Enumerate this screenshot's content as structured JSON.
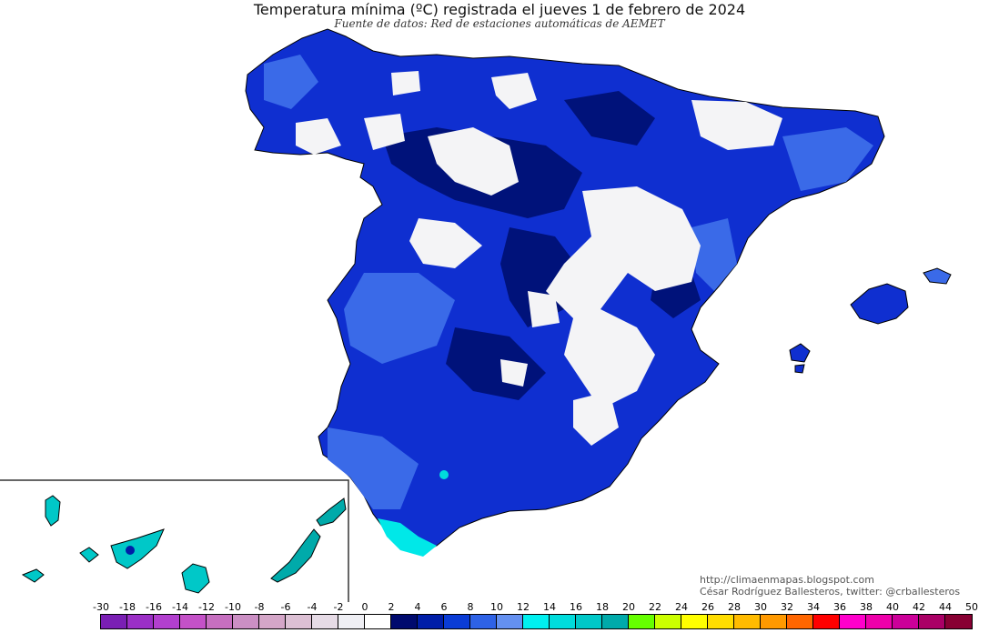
{
  "title": "Temperatura mínima (ºC) registrada el jueves 1 de febrero de 2024",
  "subtitle": "Fuente de datos: Red de estaciones automáticas de AEMET",
  "credits": {
    "url": "http://climaenmapas.blogspot.com",
    "author": "César Rodríguez Ballesteros, twitter: @crballesteros"
  },
  "legend": {
    "labels": [
      "-30",
      "-18",
      "-16",
      "-14",
      "-12",
      "-10",
      "-8",
      "-6",
      "-4",
      "-2",
      "0",
      "2",
      "4",
      "6",
      "8",
      "10",
      "12",
      "14",
      "16",
      "18",
      "20",
      "22",
      "24",
      "26",
      "28",
      "30",
      "32",
      "34",
      "36",
      "38",
      "40",
      "42",
      "44",
      "50"
    ],
    "colors": [
      "#7a1fb4",
      "#9b2fc6",
      "#b23fcf",
      "#c451c8",
      "#c66fc0",
      "#cb8fc4",
      "#d4a6c8",
      "#dcc0d4",
      "#e6dbe6",
      "#efeff4",
      "#ffffff",
      "#000a6e",
      "#001ea8",
      "#0a3cd6",
      "#2e62e6",
      "#6490f0",
      "#00f0f0",
      "#00dcdc",
      "#00c8c8",
      "#00aaaa",
      "#66ff00",
      "#ccff00",
      "#ffff00",
      "#ffdd00",
      "#ffbb00",
      "#ff9900",
      "#ff6600",
      "#ff0000",
      "#ff00cc",
      "#ee00aa",
      "#cc0099",
      "#aa0066",
      "#880033"
    ]
  },
  "colors": {
    "land_cold": "#0f2fd0",
    "land_very_cold": "#00127a",
    "land_mild": "#3a6ae8",
    "below_zero": "#f4f4f6",
    "coast_warm": "#00e8e8"
  }
}
